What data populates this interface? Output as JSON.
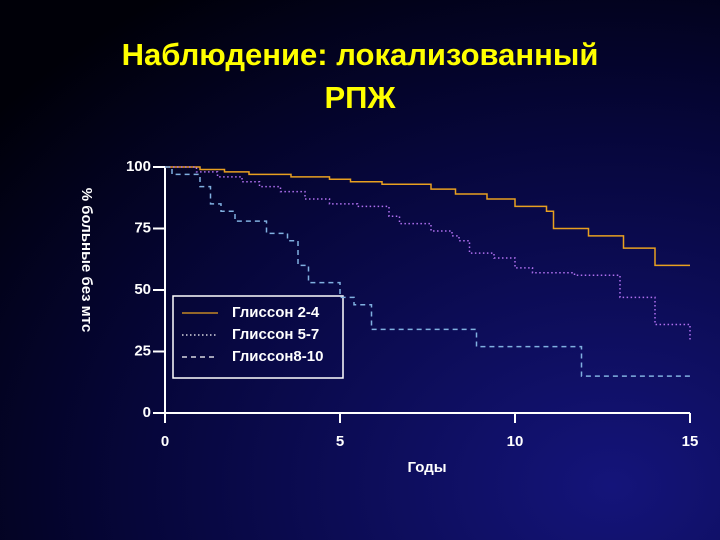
{
  "chart_data": {
    "type": "step",
    "title": [
      "Наблюдение: локализованный",
      "РПЖ"
    ],
    "xlabel": "Годы",
    "ylabel": "% больные без мтс",
    "xlim": [
      0,
      15
    ],
    "xticks": [
      0,
      5,
      10,
      15
    ],
    "ylim": [
      0,
      100
    ],
    "yticks": [
      0,
      25,
      50,
      75,
      100
    ],
    "series": [
      {
        "name": "Глиссон 2-4",
        "color": "#e8a020",
        "line_style": "solid",
        "x": [
          0,
          1.0,
          1.7,
          2.4,
          3.6,
          4.7,
          5.3,
          6.2,
          7.6,
          8.3,
          9.2,
          10.0,
          10.9,
          11.1,
          12.1,
          13.1,
          14.0,
          15
        ],
        "values": [
          100,
          99,
          98,
          97,
          96,
          95,
          94,
          93,
          91,
          89,
          87,
          84,
          82,
          75,
          72,
          67,
          60,
          60
        ]
      },
      {
        "name": "Глиссон 5-7",
        "color": "#b070f0",
        "line_style": "dotted",
        "x": [
          0,
          0.9,
          1.5,
          2.2,
          2.7,
          3.3,
          4.0,
          4.7,
          5.5,
          6.4,
          6.7,
          7.6,
          8.2,
          8.4,
          8.7,
          9.4,
          10.0,
          10.5,
          11.7,
          13.0,
          14.0,
          15
        ],
        "values": [
          100,
          98,
          96,
          94,
          92,
          90,
          87,
          85,
          84,
          80,
          77,
          74,
          72,
          70,
          65,
          63,
          59,
          57,
          56,
          47,
          36,
          29
        ]
      },
      {
        "name": "Глиссон8-10",
        "color": "#80b0e0",
        "line_style": "dashed",
        "x": [
          0,
          0.2,
          1.0,
          1.3,
          1.6,
          2.0,
          2.9,
          3.5,
          3.8,
          4.1,
          5.0,
          5.4,
          5.9,
          8.9,
          11.9,
          15
        ],
        "values": [
          100,
          97,
          92,
          85,
          82,
          78,
          73,
          70,
          60,
          53,
          47,
          44,
          34,
          27,
          15,
          15
        ]
      }
    ]
  }
}
